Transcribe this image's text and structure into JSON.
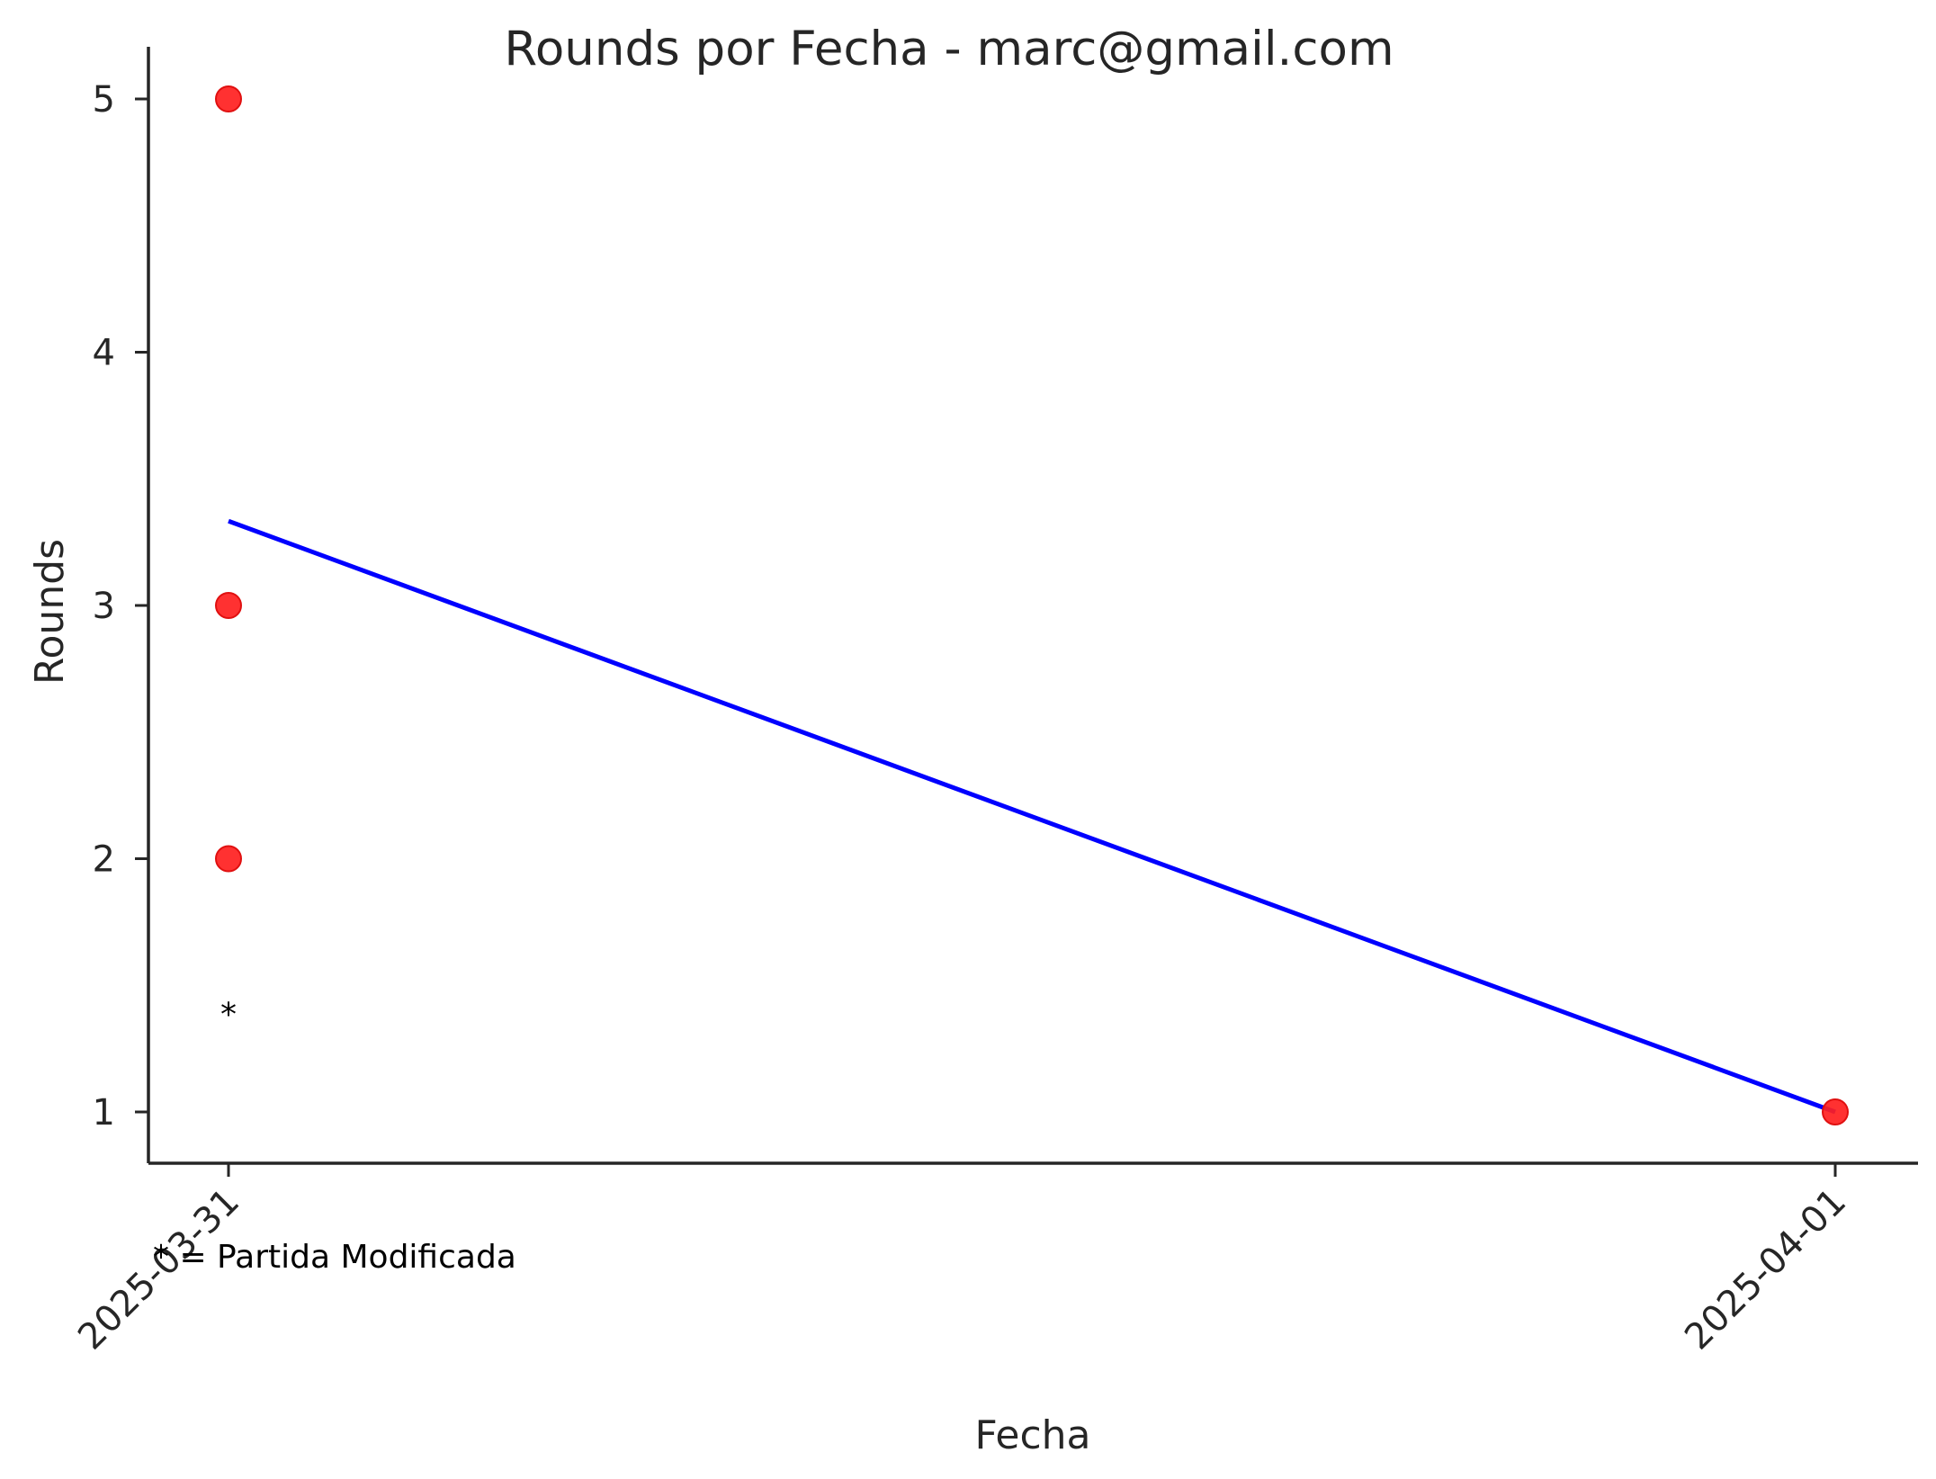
{
  "chart_data": {
    "type": "scatter",
    "title": "Rounds por Fecha - marc@gmail.com",
    "xlabel": "Fecha",
    "ylabel": "Rounds",
    "x_ticks": [
      "2025-03-31",
      "2025-04-01"
    ],
    "y_ticks": [
      1,
      2,
      3,
      4,
      5
    ],
    "ylim": [
      0.8,
      5.2
    ],
    "grid": false,
    "legend": "none",
    "series": [
      {
        "type": "scatter",
        "color": "#ff2020",
        "points": [
          {
            "x": "2025-03-31",
            "y": 5
          },
          {
            "x": "2025-03-31",
            "y": 3
          },
          {
            "x": "2025-03-31",
            "y": 2
          },
          {
            "x": "2025-04-01",
            "y": 1
          }
        ]
      },
      {
        "type": "line",
        "color": "#0000ff",
        "points": [
          {
            "x": "2025-03-31",
            "y": 3.3333
          },
          {
            "x": "2025-04-01",
            "y": 1
          }
        ]
      }
    ],
    "annotations": [
      {
        "text": "*",
        "x": "2025-03-31",
        "y": 1.45
      }
    ],
    "footnote": "* = Partida Modificada"
  }
}
